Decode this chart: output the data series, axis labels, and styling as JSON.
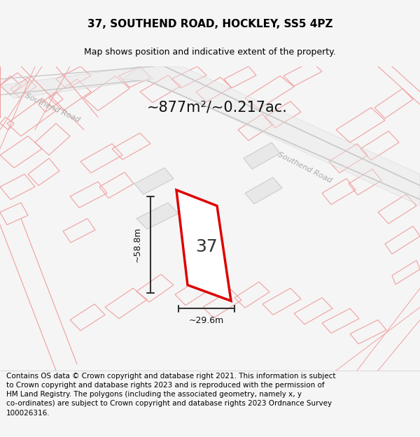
{
  "title": "37, SOUTHEND ROAD, HOCKLEY, SS5 4PZ",
  "subtitle": "Map shows position and indicative extent of the property.",
  "area_text": "~877m²/~0.217ac.",
  "width_text": "~29.6m",
  "height_text": "~58.8m",
  "number_label": "37",
  "footer_text": "Contains OS data © Crown copyright and database right 2021. This information is subject\nto Crown copyright and database rights 2023 and is reproduced with the permission of\nHM Land Registry. The polygons (including the associated geometry, namely x, y\nco-ordinates) are subject to Crown copyright and database rights 2023 Ordnance Survey\n100026316.",
  "bg_color": "#f5f5f5",
  "map_bg": "#ffffff",
  "road_color_light": "#f0a0a0",
  "plot_outline_color": "#dd0000",
  "plot_fill_color": "#ffffff",
  "dim_line_color": "#333333",
  "title_fontsize": 11,
  "subtitle_fontsize": 9,
  "area_fontsize": 15,
  "label_fontsize": 18,
  "footer_fontsize": 7.5
}
